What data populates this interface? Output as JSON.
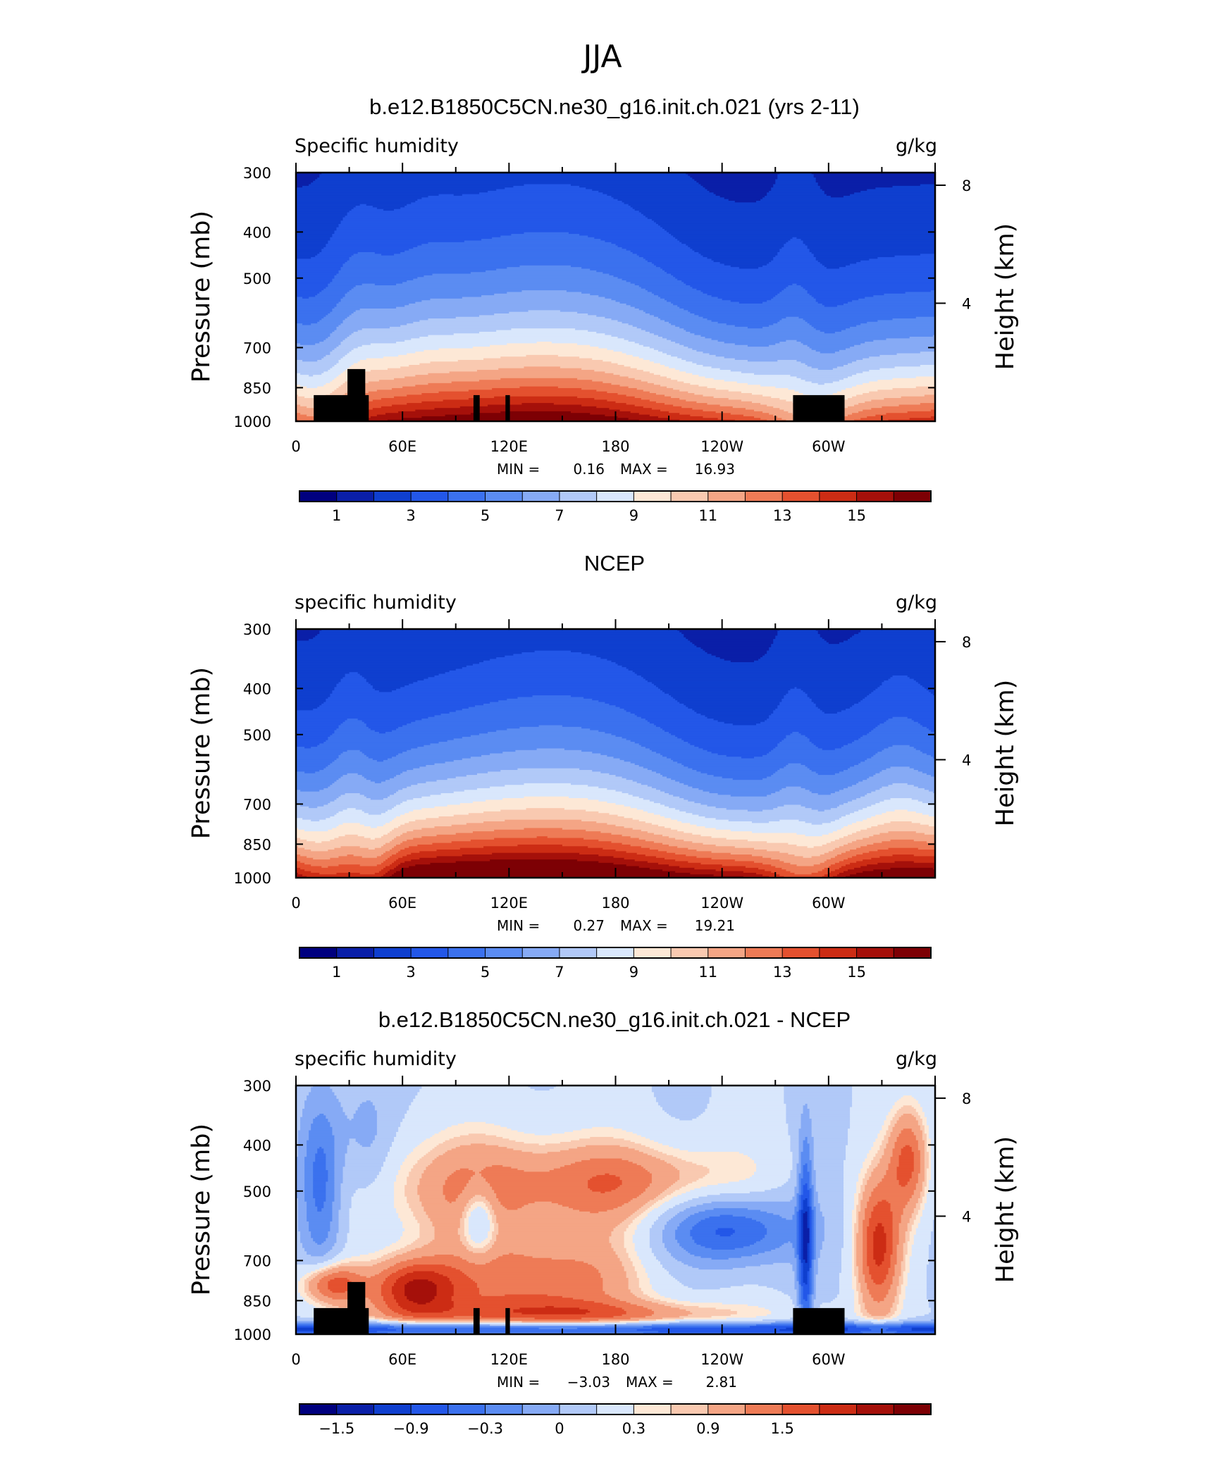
{
  "figure": {
    "title": "JJA"
  },
  "chart_data": [
    {
      "type": "heatmap",
      "title": "b.e12.B1850C5CN.ne30_g16.init.ch.021 (yrs 2-11)",
      "left_label": "Specific humidity",
      "right_label": "g/kg",
      "xlabel": "",
      "ylabel": "Pressure (mb)",
      "ylabel_right": "Height (km)",
      "x_ticks": [
        "0",
        "60E",
        "120E",
        "180",
        "120W",
        "60W"
      ],
      "y_ticks": [
        "300",
        "400",
        "500",
        "700",
        "850",
        "1000"
      ],
      "y2_ticks": [
        "8",
        "4"
      ],
      "ylim": [
        1000,
        300
      ],
      "xlim": [
        0,
        360
      ],
      "stats": {
        "min_label": "MIN =",
        "min": "0.16",
        "max_label": "MAX =",
        "max": "16.93"
      },
      "colorbar": {
        "levels": [
          0,
          1,
          2,
          3,
          4,
          5,
          6,
          7,
          8,
          9,
          10,
          11,
          12,
          13,
          14,
          15,
          16
        ],
        "labels": [
          "1",
          "3",
          "5",
          "7",
          "9",
          "11",
          "13",
          "15"
        ]
      },
      "topography": true
    },
    {
      "type": "heatmap",
      "title": "NCEP",
      "left_label": "specific humidity",
      "right_label": "g/kg",
      "xlabel": "",
      "ylabel": "Pressure (mb)",
      "ylabel_right": "Height (km)",
      "x_ticks": [
        "0",
        "60E",
        "120E",
        "180",
        "120W",
        "60W"
      ],
      "y_ticks": [
        "300",
        "400",
        "500",
        "700",
        "850",
        "1000"
      ],
      "y2_ticks": [
        "8",
        "4"
      ],
      "ylim": [
        1000,
        300
      ],
      "xlim": [
        0,
        360
      ],
      "stats": {
        "min_label": "MIN =",
        "min": "0.27",
        "max_label": "MAX =",
        "max": "19.21"
      },
      "colorbar": {
        "levels": [
          0,
          1,
          2,
          3,
          4,
          5,
          6,
          7,
          8,
          9,
          10,
          11,
          12,
          13,
          14,
          15,
          16
        ],
        "labels": [
          "1",
          "3",
          "5",
          "7",
          "9",
          "11",
          "13",
          "15"
        ]
      },
      "topography": false
    },
    {
      "type": "heatmap",
      "title": "b.e12.B1850C5CN.ne30_g16.init.ch.021 - NCEP",
      "left_label": "specific humidity",
      "right_label": "g/kg",
      "xlabel": "",
      "ylabel": "Pressure (mb)",
      "ylabel_right": "Height (km)",
      "x_ticks": [
        "0",
        "60E",
        "120E",
        "180",
        "120W",
        "60W"
      ],
      "y_ticks": [
        "300",
        "400",
        "500",
        "700",
        "850",
        "1000"
      ],
      "y2_ticks": [
        "8",
        "4"
      ],
      "ylim": [
        1000,
        300
      ],
      "xlim": [
        0,
        360
      ],
      "stats": {
        "min_label": "MIN =",
        "min": "−3.03",
        "max_label": "MAX =",
        "max": "2.81"
      },
      "colorbar": {
        "levels": [
          -2.4,
          -2.1,
          -1.8,
          -1.5,
          -1.2,
          -0.9,
          -0.6,
          -0.3,
          0,
          0.15,
          0.3,
          0.6,
          0.9,
          1.2,
          1.5,
          1.8,
          2.1
        ],
        "labels": [
          "−1.5",
          "−0.9",
          "−0.3",
          "0",
          "0.3",
          "0.9",
          "1.5"
        ]
      },
      "topography": true
    }
  ],
  "palette": [
    "#00007f",
    "#0a1fa8",
    "#0f3fcf",
    "#2357e8",
    "#3b71ee",
    "#5b8cf2",
    "#86aaf5",
    "#b1c9f8",
    "#d9e7fc",
    "#fde8d6",
    "#f9c9b0",
    "#f4a585",
    "#ee7b56",
    "#e4512f",
    "#cc2c14",
    "#a5100a",
    "#7d0004"
  ]
}
